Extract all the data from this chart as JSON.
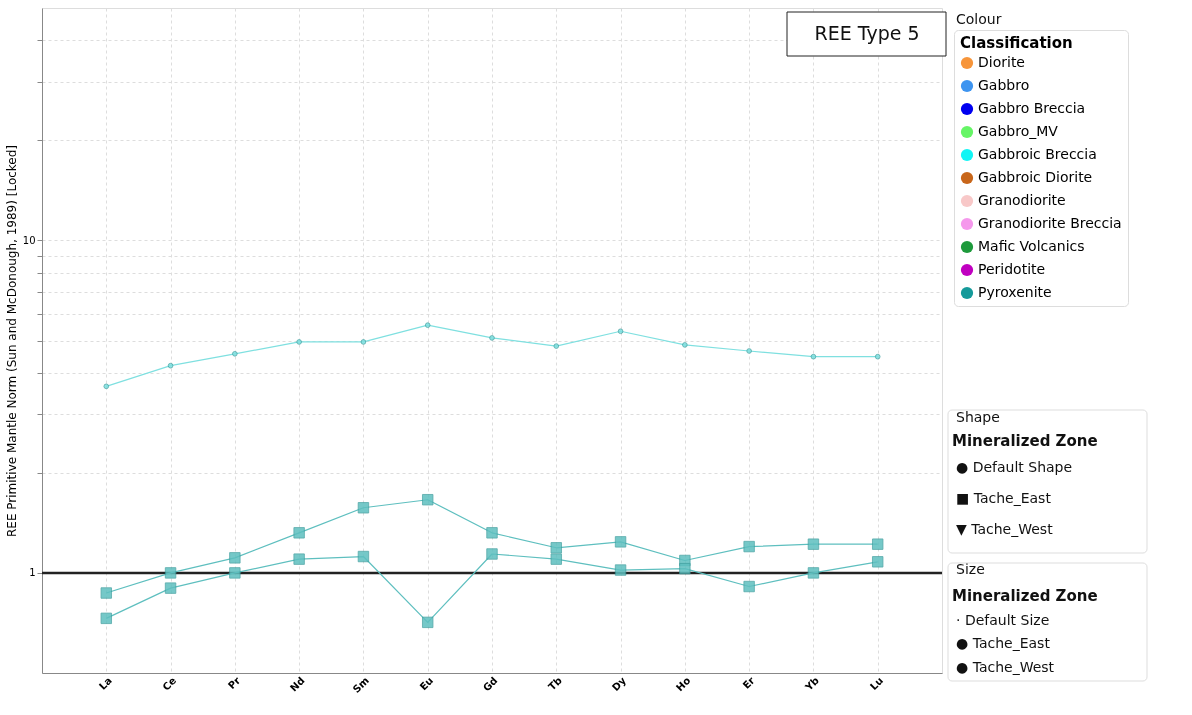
{
  "chart_data": {
    "type": "line",
    "title": "REE Type 5",
    "ylabel": "REE Primitive Mantle Norm (Sun and McDonough, 1989) [Locked]",
    "legend_title": "Classification",
    "categories": [
      "La",
      "Ce",
      "Pr",
      "Nd",
      "Sm",
      "Eu",
      "Gd",
      "Tb",
      "Dy",
      "Ho",
      "Er",
      "Yb",
      "Lu"
    ],
    "log": true,
    "grid": true,
    "legend": "right",
    "ylim": [
      0.5,
      50
    ],
    "yticks": [
      {
        "value": 2,
        "label": null
      },
      {
        "value": 3,
        "label": null
      },
      {
        "value": 4,
        "label": null
      },
      {
        "value": 5,
        "label": null
      },
      {
        "value": 6,
        "label": null
      },
      {
        "value": 7,
        "label": null
      },
      {
        "value": 8,
        "label": null
      },
      {
        "value": 9,
        "label": null
      },
      1,
      10,
      {
        "value": 20,
        "label": null
      },
      {
        "value": 30,
        "label": null
      },
      {
        "value": 40,
        "label": null
      }
    ],
    "ref_lines": [
      {
        "axis": "y",
        "value": 1,
        "color": "#222222"
      }
    ],
    "series": [
      {
        "color": "#7fe0e0",
        "marker": "circle",
        "values": [
          3.64,
          4.2,
          4.56,
          4.95,
          4.95,
          5.56,
          5.09,
          4.81,
          5.33,
          4.85,
          4.65,
          4.47,
          4.47
        ]
      },
      {
        "color": "#5ebfbf",
        "marker": "square",
        "values": [
          0.87,
          1.0,
          1.11,
          1.32,
          1.57,
          1.66,
          1.32,
          1.19,
          1.24,
          1.09,
          1.2,
          1.22,
          1.22
        ]
      },
      {
        "color": "#5ebfbf",
        "marker": "square",
        "values": [
          0.73,
          0.9,
          1.0,
          1.1,
          1.12,
          0.71,
          1.14,
          1.1,
          1.02,
          1.03,
          0.91,
          1.0,
          1.08
        ]
      },
      {
        "name": "Diorite",
        "color": "#f7953a",
        "values": [
          null,
          null,
          null,
          null,
          null,
          null,
          null,
          null,
          null,
          null,
          null,
          null,
          null
        ]
      },
      {
        "name": "Gabbro",
        "color": "#3d94f0",
        "values": [
          null,
          null,
          null,
          null,
          null,
          null,
          null,
          null,
          null,
          null,
          null,
          null,
          null
        ]
      },
      {
        "name": "Gabbro Breccia",
        "color": "#0000f0",
        "values": [
          null,
          null,
          null,
          null,
          null,
          null,
          null,
          null,
          null,
          null,
          null,
          null,
          null
        ]
      },
      {
        "name": "Gabbro_MV",
        "color": "#66f566",
        "values": [
          null,
          null,
          null,
          null,
          null,
          null,
          null,
          null,
          null,
          null,
          null,
          null,
          null
        ]
      },
      {
        "name": "Gabbroic Breccia",
        "color": "#11f5f5",
        "values": [
          null,
          null,
          null,
          null,
          null,
          null,
          null,
          null,
          null,
          null,
          null,
          null,
          null
        ]
      },
      {
        "name": "Gabbroic Diorite",
        "color": "#c8661a",
        "values": [
          null,
          null,
          null,
          null,
          null,
          null,
          null,
          null,
          null,
          null,
          null,
          null,
          null
        ]
      },
      {
        "name": "Granodiorite",
        "color": "#f8c8c8",
        "values": [
          null,
          null,
          null,
          null,
          null,
          null,
          null,
          null,
          null,
          null,
          null,
          null,
          null
        ]
      },
      {
        "name": "Granodiorite Breccia",
        "color": "#f598ec",
        "values": [
          null,
          null,
          null,
          null,
          null,
          null,
          null,
          null,
          null,
          null,
          null,
          null,
          null
        ]
      },
      {
        "name": "Mafic Volcanics",
        "color": "#1e9a3c",
        "values": [
          null,
          null,
          null,
          null,
          null,
          null,
          null,
          null,
          null,
          null,
          null,
          null,
          null
        ]
      },
      {
        "name": "Peridotite",
        "color": "#c000c0",
        "values": [
          null,
          null,
          null,
          null,
          null,
          null,
          null,
          null,
          null,
          null,
          null,
          null,
          null
        ]
      },
      {
        "name": "Pyroxenite",
        "color": "#159a9a",
        "values": [
          null,
          null,
          null,
          null,
          null,
          null,
          null,
          null,
          null,
          null,
          null,
          null,
          null
        ]
      }
    ],
    "annotations": [
      "Colour",
      "Shape",
      "Mineralized Zone",
      "● Default Shape",
      "■ Tache_East",
      "▼ Tache_West",
      "Size",
      "Mineralized Zone",
      "·  Default Size",
      "●  Tache_East",
      "●  Tache_West"
    ]
  }
}
